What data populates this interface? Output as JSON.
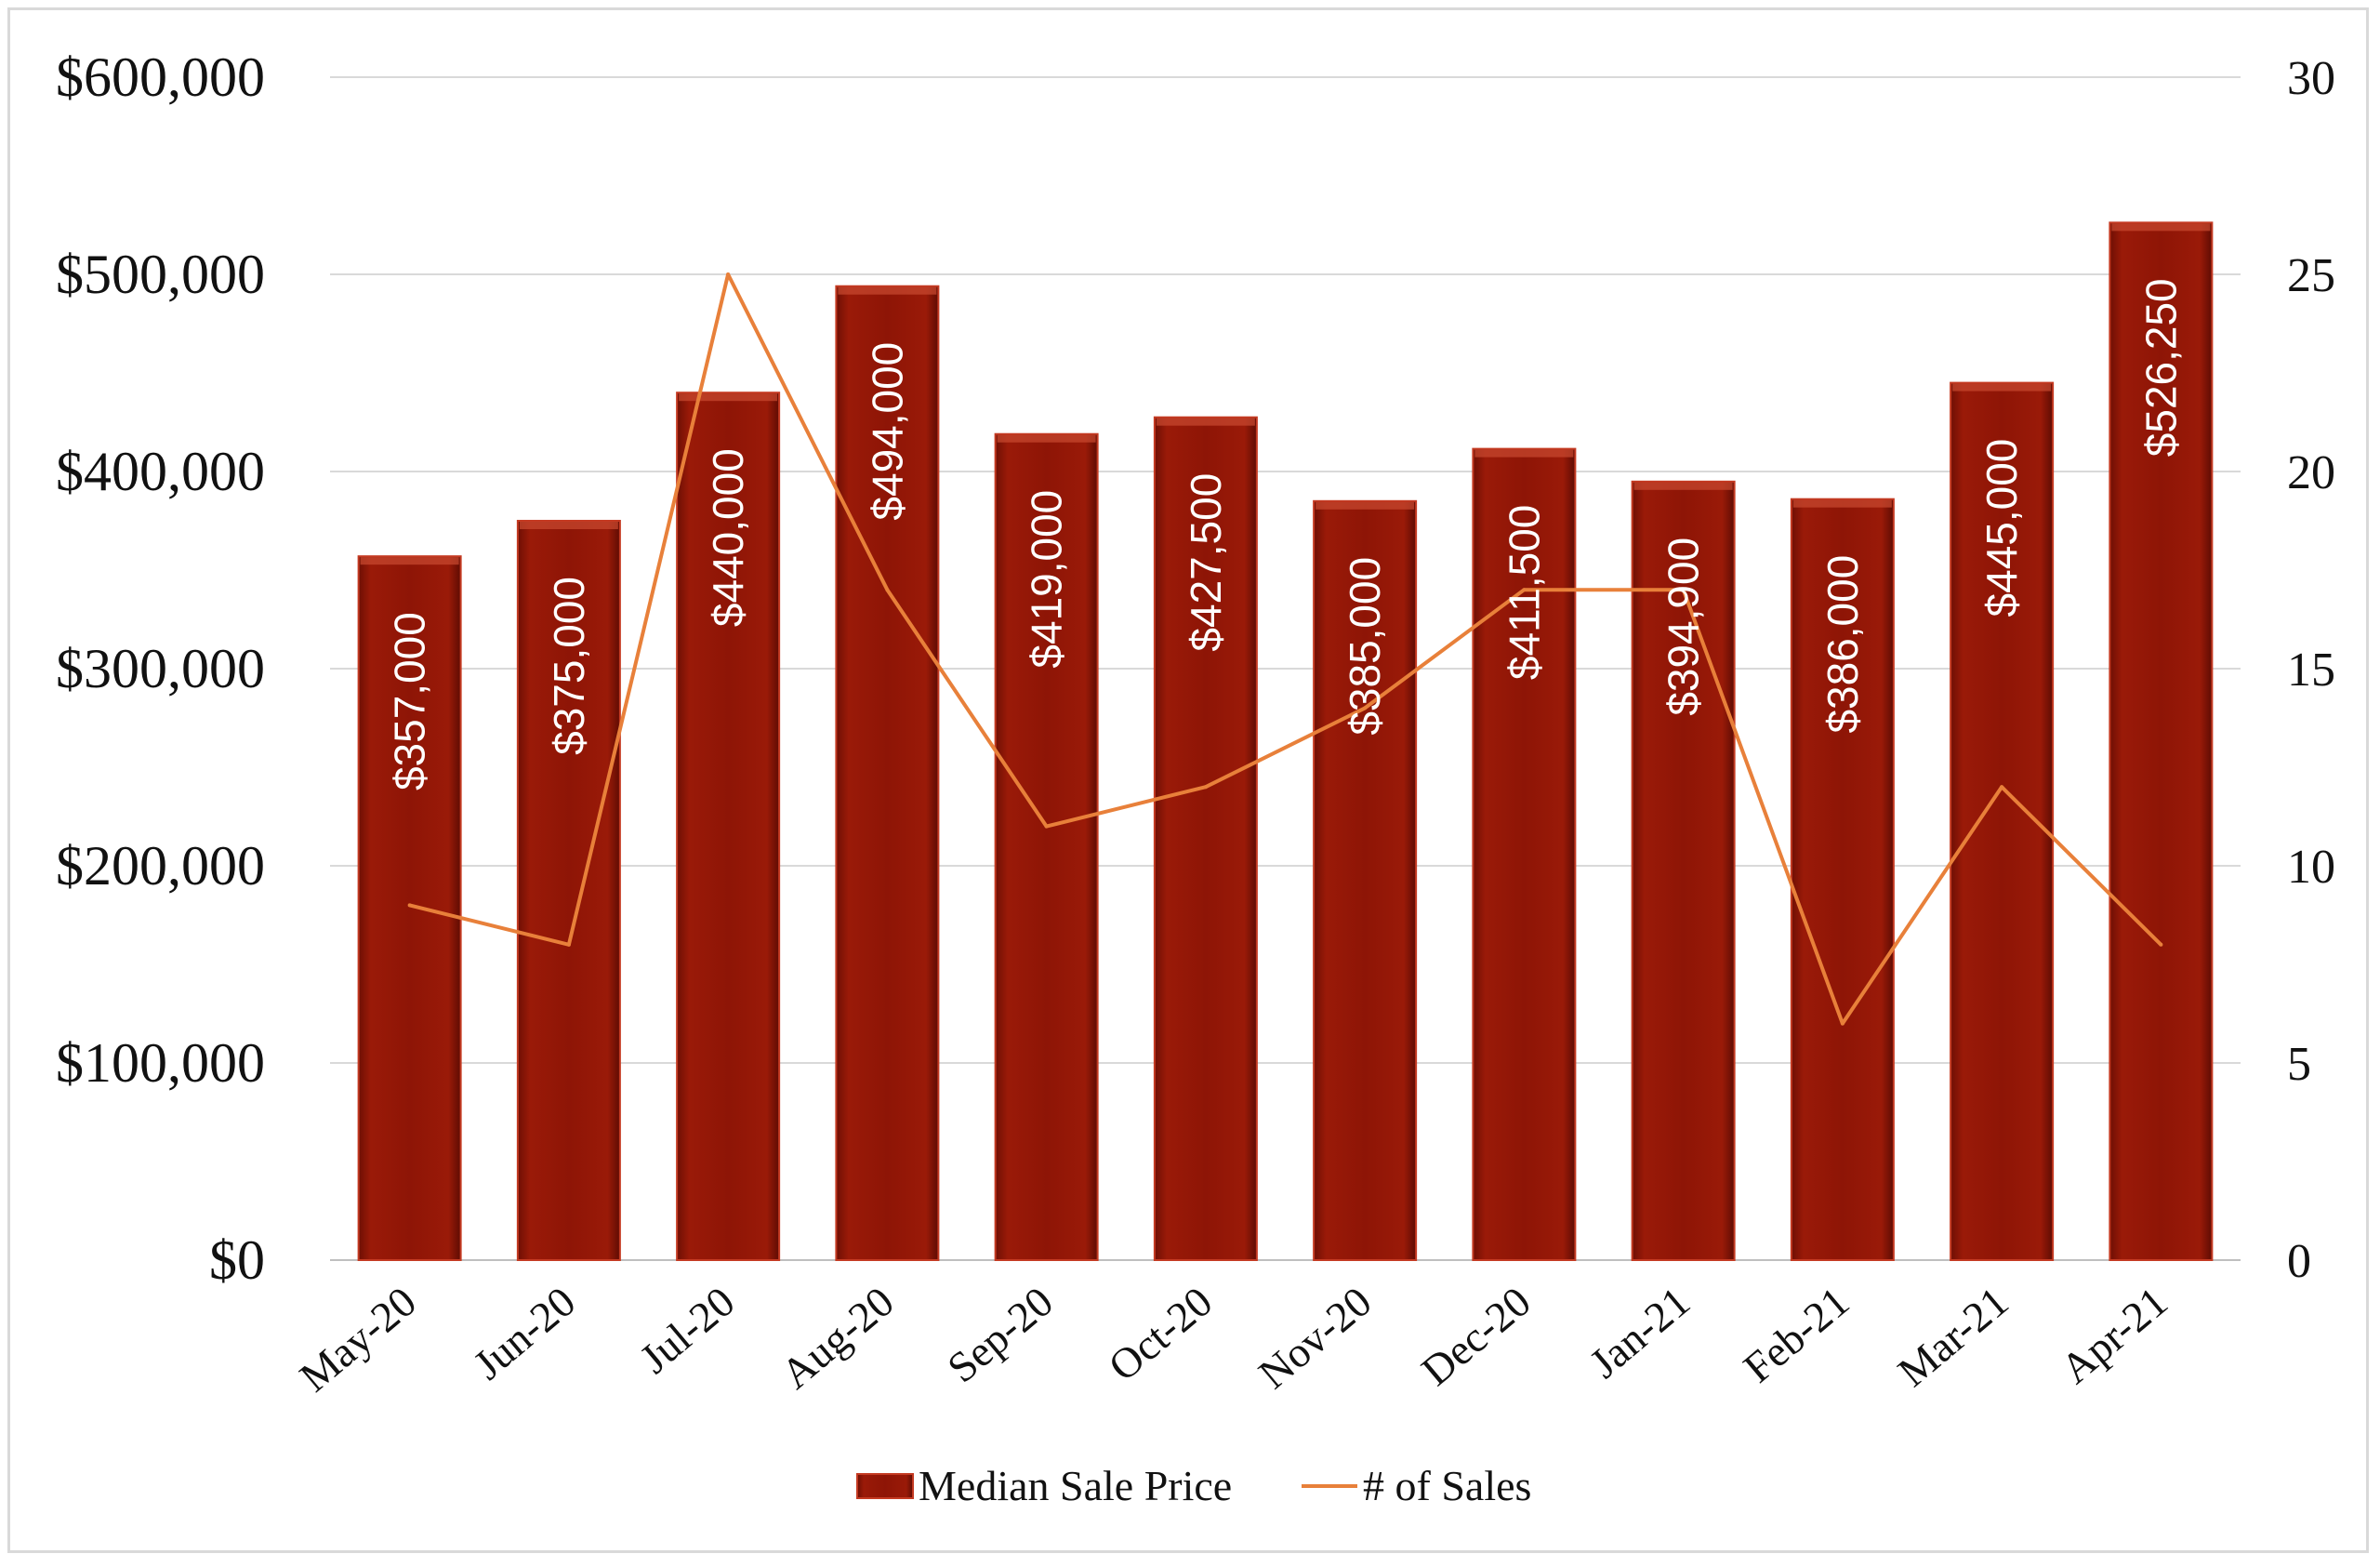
{
  "chart_data": {
    "type": "bar",
    "categories": [
      "May-20",
      "Jun-20",
      "Jul-20",
      "Aug-20",
      "Sep-20",
      "Oct-20",
      "Nov-20",
      "Dec-20",
      "Jan-21",
      "Feb-21",
      "Mar-21",
      "Apr-21"
    ],
    "series": [
      {
        "name": "Median Sale Price",
        "type": "bar",
        "axis": "left",
        "values": [
          357000,
          375000,
          440000,
          494000,
          419000,
          427500,
          385000,
          411500,
          394900,
          386000,
          445000,
          526250
        ],
        "labels": [
          "$357,000",
          "$375,000",
          "$440,000",
          "$494,000",
          "$419,000",
          "$427,500",
          "$385,000",
          "$411,500",
          "$394,900",
          "$386,000",
          "$445,000",
          "$526,250"
        ]
      },
      {
        "name": "# of Sales",
        "type": "line",
        "axis": "right",
        "values": [
          9,
          8,
          25,
          17,
          11,
          12,
          14,
          17,
          17,
          6,
          12,
          8
        ]
      }
    ],
    "y_left": {
      "lim": [
        0,
        600000
      ],
      "ticks": [
        0,
        100000,
        200000,
        300000,
        400000,
        500000,
        600000
      ],
      "tick_labels": [
        "$0",
        "$100,000",
        "$200,000",
        "$300,000",
        "$400,000",
        "$500,000",
        "$600,000"
      ]
    },
    "y_right": {
      "lim": [
        0,
        30
      ],
      "ticks": [
        0,
        5,
        10,
        15,
        20,
        25,
        30
      ],
      "tick_labels": [
        "0",
        "5",
        "10",
        "15",
        "20",
        "25",
        "30"
      ]
    },
    "grid": true,
    "legend_position": "bottom",
    "colors": {
      "bar": "#8e1506",
      "bar_edge": "#c43a22",
      "line": "#e8803a",
      "grid": "#d9d9d9"
    }
  }
}
